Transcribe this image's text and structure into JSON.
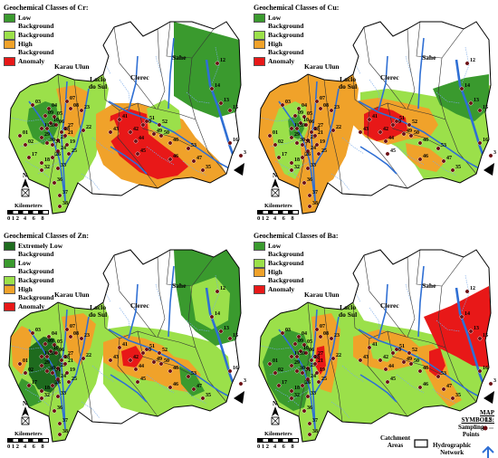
{
  "panels": [
    {
      "id": "cr",
      "title": "Geochemical Classes of Cr:",
      "legend": [
        {
          "label": "Low\nBackground",
          "color": "#3a9a2e"
        },
        {
          "label": "Background",
          "color": "#9be04a"
        },
        {
          "label": "High\nBackground",
          "color": "#f0a22a"
        },
        {
          "label": "Anomaly",
          "color": "#e81818"
        }
      ]
    },
    {
      "id": "cu",
      "title": "Geochemical Classes of Cu:",
      "legend": [
        {
          "label": "Low\nBackground",
          "color": "#3a9a2e"
        },
        {
          "label": "Background",
          "color": "#9be04a"
        },
        {
          "label": "High\nBackground",
          "color": "#f0a22a"
        },
        {
          "label": "Anomaly",
          "color": "#e81818"
        }
      ]
    },
    {
      "id": "zn",
      "title": "Geochemical Classes of Zn:",
      "legend": [
        {
          "label": "Extremely Low\nBackground",
          "color": "#1e6b1e"
        },
        {
          "label": "Low\nBackground",
          "color": "#3a9a2e"
        },
        {
          "label": "Background",
          "color": "#9be04a"
        },
        {
          "label": "High\nBackground",
          "color": "#f0a22a"
        },
        {
          "label": "Anomaly",
          "color": "#e81818"
        }
      ]
    },
    {
      "id": "ba",
      "title": "Geochemical Classes of Ba:",
      "legend": [
        {
          "label": "Low\nBackground",
          "color": "#3a9a2e"
        },
        {
          "label": "Background",
          "color": "#9be04a"
        },
        {
          "label": "High\nBackground",
          "color": "#f0a22a"
        },
        {
          "label": "Anomaly",
          "color": "#e81818"
        }
      ]
    }
  ],
  "places": {
    "karau_ulun": "Karau Ulun",
    "laclo_do_sul": "Laclo\ndo Sul",
    "clerec": "Clerec",
    "sahe": "Sahe"
  },
  "scale": {
    "title": "Kilometers",
    "ticks": "0 1 2   4    6    8"
  },
  "sampling_points": [
    "01",
    "02",
    "03",
    "04",
    "05",
    "06",
    "07",
    "08",
    "09",
    "10",
    "11",
    "12",
    "13",
    "14",
    "15",
    "16",
    "17",
    "18",
    "19",
    "20",
    "21",
    "22",
    "23",
    "24",
    "25",
    "26",
    "27",
    "28",
    "29",
    "30",
    "31",
    "32",
    "33",
    "34",
    "35",
    "36",
    "37",
    "38",
    "39",
    "40",
    "41",
    "42",
    "43",
    "44",
    "45",
    "46",
    "47",
    "48",
    "49",
    "50",
    "51",
    "52",
    "53"
  ],
  "map_symbols": {
    "title": "MAP\nSYMBOLS:",
    "sampling": "Sampling\nPoints",
    "sample_number": "12",
    "catchment": "Catchment\nAreas",
    "hydro": "Hydrographic\nNetwork"
  },
  "colors": {
    "river": "#2f6fd4",
    "stream": "#7aaae8",
    "boundary": "#333333",
    "point": "#6b0f14",
    "outline": "#000000"
  }
}
